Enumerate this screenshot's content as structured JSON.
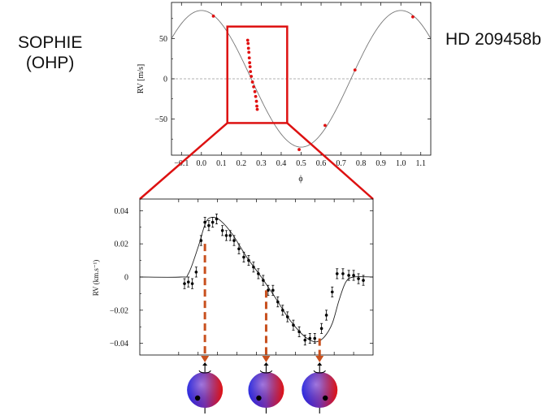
{
  "instrument": {
    "line1": "SOPHIE",
    "line2": "(OHP)"
  },
  "planet": {
    "name": "HD 209458b"
  },
  "colors": {
    "data_red": "#e01010",
    "zoom_box": "#dd1111",
    "arrow": "#c8501e",
    "model": "#777777"
  },
  "chart_data": [
    {
      "type": "scatter",
      "title": "",
      "xlabel": "ϕ",
      "ylabel": "RV [m/s]",
      "xlim": [
        -0.15,
        1.15
      ],
      "ylim": [
        -95,
        95
      ],
      "xticks": [
        -0.1,
        0.0,
        0.1,
        0.2,
        0.3,
        0.4,
        0.5,
        0.6,
        0.7,
        0.8,
        0.9,
        1.0,
        1.1
      ],
      "xtick_labels": [
        "−0.1",
        "0.0",
        "0.1",
        "0.2",
        "0.3",
        "0.4",
        "0.5",
        "0.6",
        "0.7",
        "0.8",
        "0.9",
        "1.0",
        "1.1"
      ],
      "yticks": [
        50,
        0,
        -50
      ],
      "ytick_labels": [
        "50",
        "0",
        "−50"
      ],
      "grid": false,
      "reference_line_y": 0,
      "model": {
        "kind": "sine",
        "amplitude": 85,
        "phase_offset": 0.25
      },
      "points": [
        {
          "x": 0.06,
          "y": 78
        },
        {
          "x": 0.232,
          "y": 48
        },
        {
          "x": 0.234,
          "y": 44
        },
        {
          "x": 0.236,
          "y": 38
        },
        {
          "x": 0.238,
          "y": 33
        },
        {
          "x": 0.24,
          "y": 26
        },
        {
          "x": 0.242,
          "y": 20
        },
        {
          "x": 0.244,
          "y": 15
        },
        {
          "x": 0.246,
          "y": 9
        },
        {
          "x": 0.25,
          "y": 3
        },
        {
          "x": 0.256,
          "y": -4
        },
        {
          "x": 0.262,
          "y": -10
        },
        {
          "x": 0.268,
          "y": -16
        },
        {
          "x": 0.272,
          "y": -22
        },
        {
          "x": 0.276,
          "y": -28
        },
        {
          "x": 0.278,
          "y": -34
        },
        {
          "x": 0.28,
          "y": -38
        },
        {
          "x": 0.49,
          "y": -88
        },
        {
          "x": 0.62,
          "y": -58
        },
        {
          "x": 0.77,
          "y": 11
        },
        {
          "x": 1.06,
          "y": 77
        }
      ],
      "zoom_box": {
        "x": [
          0.13,
          0.43
        ],
        "y": [
          -55,
          65
        ]
      }
    },
    {
      "type": "scatter",
      "title": "",
      "xlabel": "",
      "ylabel": "RV (km.s⁻¹)",
      "xlim": [
        0,
        24
      ],
      "ylim": [
        -0.047,
        0.047
      ],
      "xticks": [
        4,
        6,
        8,
        10,
        12,
        14,
        16,
        18,
        20,
        22
      ],
      "yticks": [
        0.04,
        0.02,
        0,
        -0.02,
        -0.04
      ],
      "ytick_labels": [
        "0.04",
        "0.02",
        "0",
        "−0.02",
        "−0.04"
      ],
      "grid": false,
      "error_bar": 0.003,
      "model_curve": [
        [
          0,
          0
        ],
        [
          4.2,
          0
        ],
        [
          5.0,
          0.002
        ],
        [
          6.0,
          0.018
        ],
        [
          6.8,
          0.033
        ],
        [
          7.5,
          0.036
        ],
        [
          8.3,
          0.034
        ],
        [
          9.5,
          0.026
        ],
        [
          11.0,
          0.012
        ],
        [
          12.5,
          0.0
        ],
        [
          14.0,
          -0.013
        ],
        [
          15.2,
          -0.024
        ],
        [
          16.0,
          -0.03
        ],
        [
          16.8,
          -0.035
        ],
        [
          17.5,
          -0.038
        ],
        [
          18.2,
          -0.039
        ],
        [
          19.0,
          -0.036
        ],
        [
          19.8,
          -0.028
        ],
        [
          20.5,
          -0.014
        ],
        [
          21.2,
          -0.003
        ],
        [
          22.0,
          0.0
        ],
        [
          24,
          0
        ]
      ],
      "points": [
        {
          "x": 4.6,
          "y": -0.004
        },
        {
          "x": 5.0,
          "y": -0.003
        },
        {
          "x": 5.4,
          "y": -0.004
        },
        {
          "x": 5.8,
          "y": 0.003
        },
        {
          "x": 6.3,
          "y": 0.022
        },
        {
          "x": 6.7,
          "y": 0.033
        },
        {
          "x": 7.1,
          "y": 0.031
        },
        {
          "x": 7.5,
          "y": 0.033
        },
        {
          "x": 7.9,
          "y": 0.035
        },
        {
          "x": 8.5,
          "y": 0.028
        },
        {
          "x": 8.9,
          "y": 0.025
        },
        {
          "x": 9.3,
          "y": 0.025
        },
        {
          "x": 9.7,
          "y": 0.022
        },
        {
          "x": 10.2,
          "y": 0.017
        },
        {
          "x": 10.7,
          "y": 0.012
        },
        {
          "x": 11.2,
          "y": 0.01
        },
        {
          "x": 11.7,
          "y": 0.006
        },
        {
          "x": 12.2,
          "y": 0.002
        },
        {
          "x": 12.7,
          "y": -0.002
        },
        {
          "x": 13.2,
          "y": -0.008
        },
        {
          "x": 13.7,
          "y": -0.008
        },
        {
          "x": 14.2,
          "y": -0.015
        },
        {
          "x": 14.7,
          "y": -0.02
        },
        {
          "x": 15.2,
          "y": -0.024
        },
        {
          "x": 15.8,
          "y": -0.029
        },
        {
          "x": 16.4,
          "y": -0.033
        },
        {
          "x": 17.0,
          "y": -0.038
        },
        {
          "x": 17.5,
          "y": -0.037
        },
        {
          "x": 18.0,
          "y": -0.037
        },
        {
          "x": 18.7,
          "y": -0.031
        },
        {
          "x": 19.2,
          "y": -0.023
        },
        {
          "x": 19.8,
          "y": -0.009
        },
        {
          "x": 20.3,
          "y": 0.002
        },
        {
          "x": 20.9,
          "y": 0.002
        },
        {
          "x": 21.5,
          "y": 0.001
        },
        {
          "x": 22.0,
          "y": 0.001
        },
        {
          "x": 22.5,
          "y": -0.001
        },
        {
          "x": 23.0,
          "y": -0.002
        }
      ]
    }
  ],
  "transit_stages": [
    {
      "x": 6.7,
      "from_y": 0.02,
      "spot": "lower-left"
    },
    {
      "x": 13.0,
      "from_y": -0.008,
      "spot": "lower-left"
    },
    {
      "x": 18.5,
      "from_y": -0.037,
      "spot": "lower-right"
    }
  ]
}
